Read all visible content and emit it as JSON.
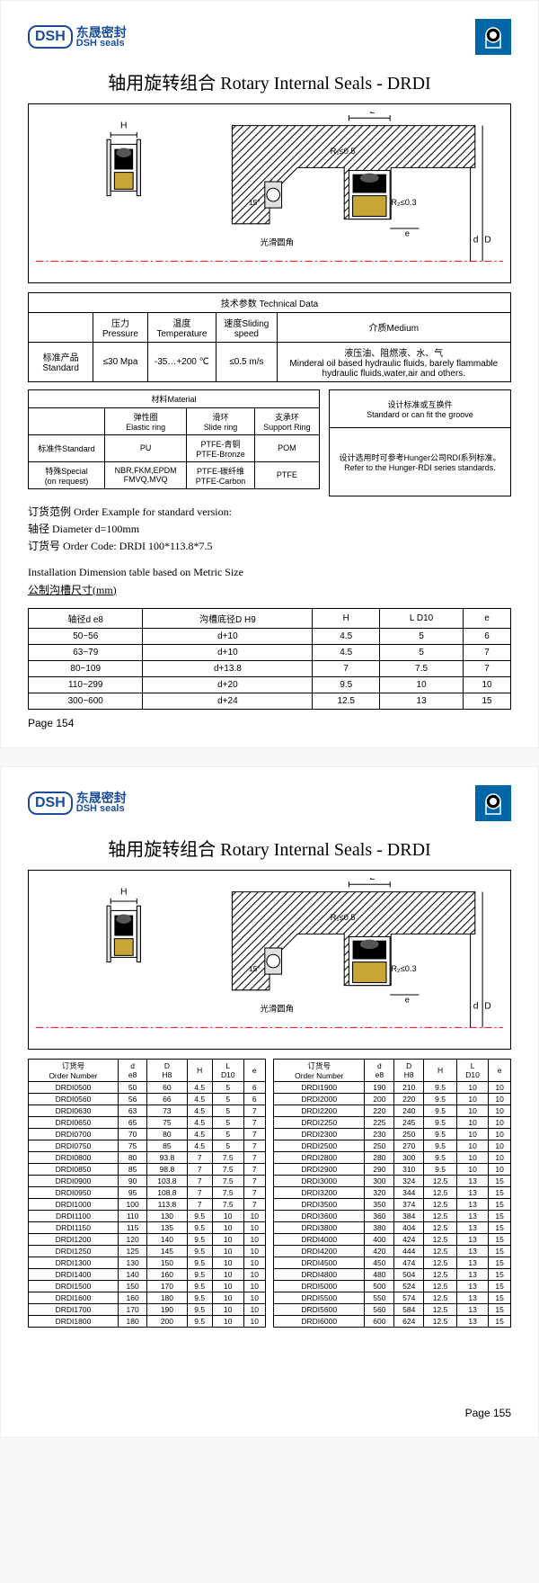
{
  "logo": {
    "brand": "DSH",
    "cn": "东晟密封",
    "en": "DSH seals"
  },
  "title": "轴用旋转组合 Rotary Internal Seals - DRDI",
  "diagram_labels": {
    "H": "H",
    "L": "L",
    "R1": "R₁≤0.5",
    "R2": "R₂≤0.3",
    "angle": "15°",
    "fillet": "光滑圆角",
    "e": "e",
    "D": "D",
    "d": "d"
  },
  "tech_data": {
    "header": "技术参数 Technical Data",
    "cols": [
      "",
      "压力Pressure",
      "温度Temperature",
      "速度Sliding speed",
      "介质Medium"
    ],
    "row_label": "标准产品Standard",
    "pressure": "≤30 Mpa",
    "temperature": "-35…+200 ℃",
    "speed": "≤0.5 m/s",
    "medium": "液压油、阻燃液、水、气\nMinderal oil based hydraulic fluids, barely flammable hydraulic fluids,water,air and others."
  },
  "material": {
    "header": "材料Material",
    "cols": [
      "",
      "弹性圈\nElastic ring",
      "滑环\nSlide ring",
      "支承环\nSupport Ring"
    ],
    "std_label": "标准件Standard",
    "std_vals": [
      "PU",
      "PTFE-青铜\nPTFE-Bronze",
      "POM"
    ],
    "spec_label": "特殊Special\n(on request)",
    "spec_vals": [
      "NBR,FKM,EPDM\nFMVQ,MVQ",
      "PTFE-碳纤维\nPTFE-Carbon",
      "PTFE"
    ]
  },
  "groove": {
    "header": "设计标准或互换件\nStandard or can fit the groove",
    "body": "设计选用时可参考Hunger公司RDI系列标准。\nRefer to the Hunger-RDI series standards."
  },
  "order_example": {
    "l1": "订货范例  Order Example for standard version:",
    "l2": "轴径  Diameter  d=100mm",
    "l3": "订货号 Order Code:  DRDI 100*113.8*7.5"
  },
  "install": {
    "title": "Installation Dimension table based on Metric Size",
    "subtitle": "公制沟槽尺寸(mm)",
    "cols": [
      "轴径d  e8",
      "沟槽底径D  H9",
      "H",
      "L  D10",
      "e"
    ],
    "rows": [
      [
        "50~56",
        "d+10",
        "4.5",
        "5",
        "6"
      ],
      [
        "63~79",
        "d+10",
        "4.5",
        "5",
        "7"
      ],
      [
        "80~109",
        "d+13.8",
        "7",
        "7.5",
        "7"
      ],
      [
        "110~299",
        "d+20",
        "9.5",
        "10",
        "10"
      ],
      [
        "300~600",
        "d+24",
        "12.5",
        "13",
        "15"
      ]
    ]
  },
  "page154": "Page  154",
  "spec": {
    "cols": [
      "订货号\nOrder Number",
      "d\ne8",
      "D\nH8",
      "H",
      "L\nD10",
      "e"
    ],
    "left": [
      [
        "DRDI0500",
        "50",
        "60",
        "4.5",
        "5",
        "6"
      ],
      [
        "DRDI0560",
        "56",
        "66",
        "4.5",
        "5",
        "6"
      ],
      [
        "DRDI0630",
        "63",
        "73",
        "4.5",
        "5",
        "7"
      ],
      [
        "DRDI0650",
        "65",
        "75",
        "4.5",
        "5",
        "7"
      ],
      [
        "DRDI0700",
        "70",
        "80",
        "4.5",
        "5",
        "7"
      ],
      [
        "DRDI0750",
        "75",
        "85",
        "4.5",
        "5",
        "7"
      ],
      [
        "DRDI0800",
        "80",
        "93.8",
        "7",
        "7.5",
        "7"
      ],
      [
        "DRDI0850",
        "85",
        "98.8",
        "7",
        "7.5",
        "7"
      ],
      [
        "DRDI0900",
        "90",
        "103.8",
        "7",
        "7.5",
        "7"
      ],
      [
        "DRDI0950",
        "95",
        "108.8",
        "7",
        "7.5",
        "7"
      ],
      [
        "DRDI1000",
        "100",
        "113.8",
        "7",
        "7.5",
        "7"
      ],
      [
        "DRDI1100",
        "110",
        "130",
        "9.5",
        "10",
        "10"
      ],
      [
        "DRDI1150",
        "115",
        "135",
        "9.5",
        "10",
        "10"
      ],
      [
        "DRDI1200",
        "120",
        "140",
        "9.5",
        "10",
        "10"
      ],
      [
        "DRDI1250",
        "125",
        "145",
        "9.5",
        "10",
        "10"
      ],
      [
        "DRDI1300",
        "130",
        "150",
        "9.5",
        "10",
        "10"
      ],
      [
        "DRDI1400",
        "140",
        "160",
        "9.5",
        "10",
        "10"
      ],
      [
        "DRDI1500",
        "150",
        "170",
        "9.5",
        "10",
        "10"
      ],
      [
        "DRDI1600",
        "160",
        "180",
        "9.5",
        "10",
        "10"
      ],
      [
        "DRDI1700",
        "170",
        "190",
        "9.5",
        "10",
        "10"
      ],
      [
        "DRDI1800",
        "180",
        "200",
        "9.5",
        "10",
        "10"
      ]
    ],
    "right": [
      [
        "DRDI1900",
        "190",
        "210",
        "9.5",
        "10",
        "10"
      ],
      [
        "DRDI2000",
        "200",
        "220",
        "9.5",
        "10",
        "10"
      ],
      [
        "DRDI2200",
        "220",
        "240",
        "9.5",
        "10",
        "10"
      ],
      [
        "DRDI2250",
        "225",
        "245",
        "9.5",
        "10",
        "10"
      ],
      [
        "DRDI2300",
        "230",
        "250",
        "9.5",
        "10",
        "10"
      ],
      [
        "DRDI2500",
        "250",
        "270",
        "9.5",
        "10",
        "10"
      ],
      [
        "DRDI2800",
        "280",
        "300",
        "9.5",
        "10",
        "10"
      ],
      [
        "DRDI2900",
        "290",
        "310",
        "9.5",
        "10",
        "10"
      ],
      [
        "DRDI3000",
        "300",
        "324",
        "12.5",
        "13",
        "15"
      ],
      [
        "DRDI3200",
        "320",
        "344",
        "12.5",
        "13",
        "15"
      ],
      [
        "DRDI3500",
        "350",
        "374",
        "12.5",
        "13",
        "15"
      ],
      [
        "DRDI3600",
        "360",
        "384",
        "12.5",
        "13",
        "15"
      ],
      [
        "DRDI3800",
        "380",
        "404",
        "12.5",
        "13",
        "15"
      ],
      [
        "DRDI4000",
        "400",
        "424",
        "12.5",
        "13",
        "15"
      ],
      [
        "DRDI4200",
        "420",
        "444",
        "12.5",
        "13",
        "15"
      ],
      [
        "DRDI4500",
        "450",
        "474",
        "12.5",
        "13",
        "15"
      ],
      [
        "DRDI4800",
        "480",
        "504",
        "12.5",
        "13",
        "15"
      ],
      [
        "DRDI5000",
        "500",
        "524",
        "12.5",
        "13",
        "15"
      ],
      [
        "DRDI5500",
        "550",
        "574",
        "12.5",
        "13",
        "15"
      ],
      [
        "DRDI5600",
        "560",
        "584",
        "12.5",
        "13",
        "15"
      ],
      [
        "DRDI6000",
        "600",
        "624",
        "12.5",
        "13",
        "15"
      ]
    ]
  },
  "page155": "Page  155"
}
